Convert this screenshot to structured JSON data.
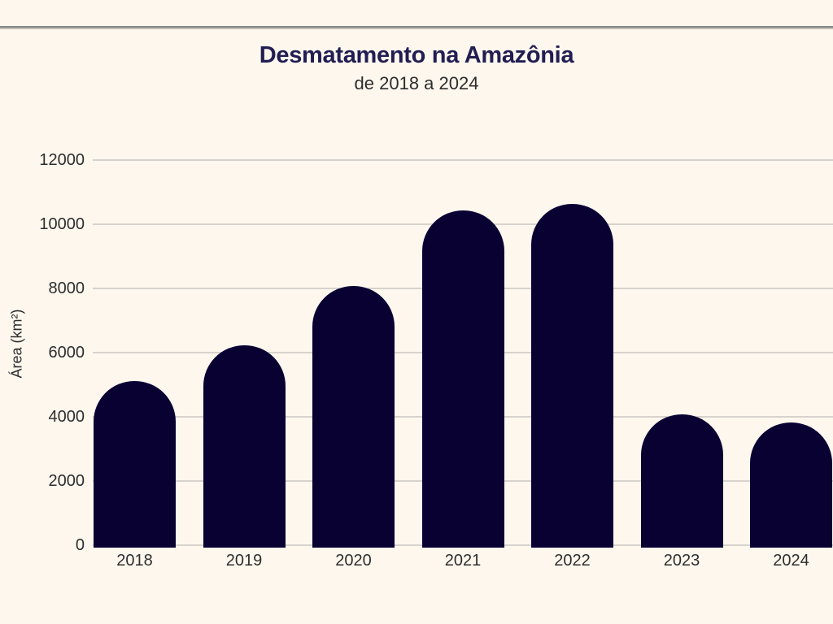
{
  "colors": {
    "background": "#fdf7ee",
    "bar": "#0a0133",
    "title": "#221e52",
    "text": "#2e2e2e",
    "gridline": "#d7d3cc",
    "divider": "#868686"
  },
  "chart_data": {
    "type": "bar",
    "title": "Desmatamento na Amazônia",
    "subtitle": "de 2018 a 2024",
    "categories": [
      "2018",
      "2019",
      "2020",
      "2021",
      "2022",
      "2023",
      "2024"
    ],
    "values": [
      5100,
      6200,
      8050,
      10400,
      10600,
      4050,
      3800
    ],
    "xlabel": "",
    "ylabel": "Área (km²)",
    "ylim": [
      0,
      12000
    ],
    "yticks": [
      0,
      2000,
      4000,
      6000,
      8000,
      10000,
      12000
    ],
    "grid": "horizontal-only",
    "legend": "none",
    "bar_shape": "rounded-top"
  }
}
